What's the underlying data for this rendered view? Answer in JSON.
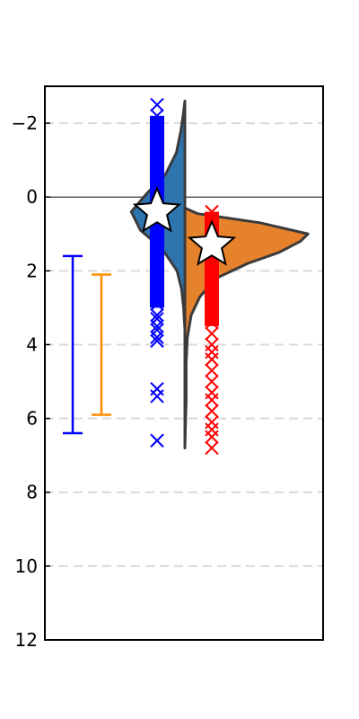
{
  "chart_data": {
    "type": "violin",
    "title": "",
    "xlabel": "",
    "ylabel": "",
    "ylim": [
      12,
      -3
    ],
    "y_inverted": true,
    "y_ticks": [
      -2,
      0,
      2,
      4,
      6,
      8,
      10,
      12
    ],
    "y_tick_labels": [
      "−2",
      "0",
      "2",
      "4",
      "6",
      "8",
      "10",
      "12"
    ],
    "grid": "horizontal dashed",
    "reference_line_y": 0,
    "left_violin": {
      "color": "#2e75b0",
      "density": [
        {
          "y": -2.6,
          "w": 0.0
        },
        {
          "y": -2.3,
          "w": 0.02
        },
        {
          "y": -1.8,
          "w": 0.06
        },
        {
          "y": -1.2,
          "w": 0.13
        },
        {
          "y": -0.6,
          "w": 0.3
        },
        {
          "y": -0.1,
          "w": 0.58
        },
        {
          "y": 0.4,
          "w": 0.82
        },
        {
          "y": 0.9,
          "w": 0.68
        },
        {
          "y": 1.4,
          "w": 0.35
        },
        {
          "y": 2.0,
          "w": 0.12
        },
        {
          "y": 2.5,
          "w": 0.05
        },
        {
          "y": 3.0,
          "w": 0.02
        },
        {
          "y": 3.6,
          "w": 0.0
        }
      ]
    },
    "right_violin": {
      "color": "#e6812c",
      "density": [
        {
          "y": 0.3,
          "w": 0.0
        },
        {
          "y": 0.45,
          "w": 0.1
        },
        {
          "y": 0.7,
          "w": 0.6
        },
        {
          "y": 1.0,
          "w": 0.98
        },
        {
          "y": 1.2,
          "w": 0.92
        },
        {
          "y": 1.5,
          "w": 0.75
        },
        {
          "y": 1.8,
          "w": 0.5
        },
        {
          "y": 2.2,
          "w": 0.25
        },
        {
          "y": 2.7,
          "w": 0.12
        },
        {
          "y": 3.2,
          "w": 0.05
        },
        {
          "y": 3.8,
          "w": 0.02
        },
        {
          "y": 4.5,
          "w": 0.01
        },
        {
          "y": 5.5,
          "w": 0.01
        },
        {
          "y": 6.8,
          "w": 0.0
        }
      ]
    },
    "blue_points": {
      "color": "#0000ff",
      "marker": "x",
      "dense_range": [
        -2.2,
        3.0
      ],
      "values": [
        -2.5,
        -2.2,
        -1.9,
        -1.6,
        -1.3,
        -1.0,
        -0.7,
        -0.4,
        -0.1,
        0.2,
        0.5,
        0.8,
        1.1,
        1.4,
        1.7,
        2.0,
        2.3,
        2.6,
        2.9,
        3.2,
        3.3,
        3.5,
        3.6,
        3.8,
        3.9,
        5.2,
        5.4,
        6.6
      ],
      "mean": 0.4
    },
    "red_points": {
      "color": "#ff0000",
      "marker": "x",
      "dense_range": [
        0.4,
        3.5
      ],
      "values": [
        0.4,
        0.7,
        1.0,
        1.3,
        1.6,
        1.9,
        2.2,
        2.5,
        2.8,
        3.1,
        3.4,
        3.7,
        4.0,
        4.2,
        4.4,
        4.7,
        5.0,
        5.3,
        5.5,
        5.8,
        6.1,
        6.3,
        6.5,
        6.8
      ],
      "mean": 1.3
    },
    "error_bars": [
      {
        "color": "#0000ff",
        "low": 1.6,
        "high": 6.4
      },
      {
        "color": "#ff8c00",
        "low": 2.1,
        "high": 5.9
      }
    ]
  }
}
